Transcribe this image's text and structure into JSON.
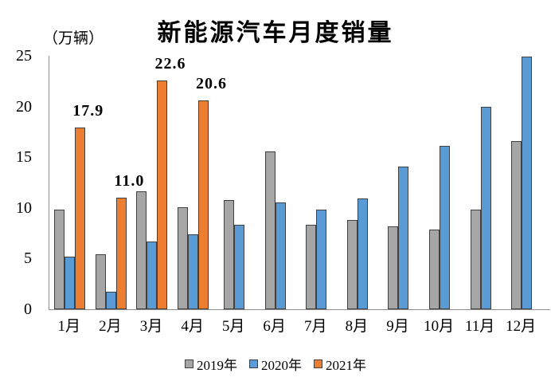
{
  "chart_data": {
    "type": "bar",
    "title": "新能源汽车月度销量",
    "unit_label": "（万辆）",
    "categories": [
      "1月",
      "2月",
      "3月",
      "4月",
      "5月",
      "6月",
      "7月",
      "8月",
      "9月",
      "10月",
      "11月",
      "12月"
    ],
    "series": [
      {
        "name": "2019年",
        "color": "#a6a6a6",
        "values": [
          9.8,
          5.4,
          11.6,
          10.1,
          10.8,
          15.6,
          8.3,
          8.8,
          8.2,
          7.9,
          9.8,
          16.6
        ]
      },
      {
        "name": "2020年",
        "color": "#5b9bd5",
        "values": [
          5.2,
          1.7,
          6.7,
          7.4,
          8.3,
          10.5,
          9.8,
          10.9,
          14.1,
          16.1,
          20.0,
          24.9
        ]
      },
      {
        "name": "2021年",
        "color": "#ed7d31",
        "values": [
          17.9,
          11.0,
          22.6,
          20.6,
          null,
          null,
          null,
          null,
          null,
          null,
          null,
          null
        ],
        "data_labels": [
          "17.9",
          "11.0",
          "22.6",
          "20.6"
        ]
      }
    ],
    "xlabel": "",
    "ylabel": "（万辆）",
    "ylim": [
      0,
      25
    ],
    "yticks": [
      0,
      5,
      10,
      15,
      20,
      25
    ],
    "grid": false,
    "legend_position": "bottom",
    "bar_outline_color": "#404040",
    "axis_color": "#8c8c8c"
  }
}
